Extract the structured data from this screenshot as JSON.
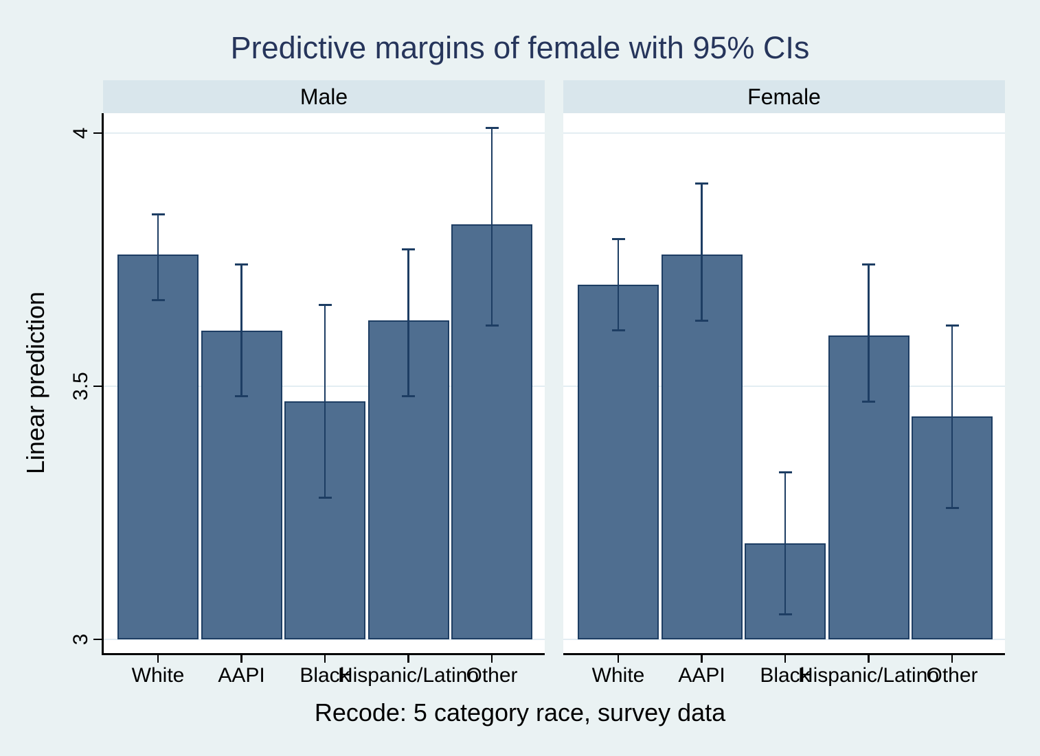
{
  "chart_data": {
    "type": "bar",
    "title": "Predictive margins of female with 95% CIs",
    "ylabel": "Linear prediction",
    "xlabel": "Recode: 5 category race, survey data",
    "categories": [
      "White",
      "AAPI",
      "Black",
      "Hispanic/Latino",
      "Other"
    ],
    "panels": [
      {
        "label": "Male",
        "values": [
          3.76,
          3.61,
          3.47,
          3.63,
          3.82
        ],
        "ci_low": [
          3.67,
          3.48,
          3.28,
          3.48,
          3.62
        ],
        "ci_high": [
          3.84,
          3.74,
          3.66,
          3.77,
          4.01
        ]
      },
      {
        "label": "Female",
        "values": [
          3.7,
          3.76,
          3.19,
          3.6,
          3.44
        ],
        "ci_low": [
          3.61,
          3.63,
          3.05,
          3.47,
          3.26
        ],
        "ci_high": [
          3.79,
          3.9,
          3.33,
          3.74,
          3.62
        ]
      }
    ],
    "yticks": [
      {
        "value": 3,
        "label": "3"
      },
      {
        "value": 3.5,
        "label": "3.5"
      },
      {
        "value": 4,
        "label": "4"
      }
    ],
    "ylim": [
      2.97,
      4.04
    ],
    "grid": true,
    "legend": "none",
    "error_bars": "95% CI"
  },
  "colors": {
    "background": "#eaf2f3",
    "panel_header_bg": "#d9e6ec",
    "plot_bg": "#ffffff",
    "gridline": "#e3edf2",
    "bar_fill": "#4f6e90",
    "bar_outline": "#1d3d63",
    "error_bar": "#1d3d63",
    "axis": "#000000",
    "title_text": "#26355b",
    "label_text": "#000000"
  }
}
